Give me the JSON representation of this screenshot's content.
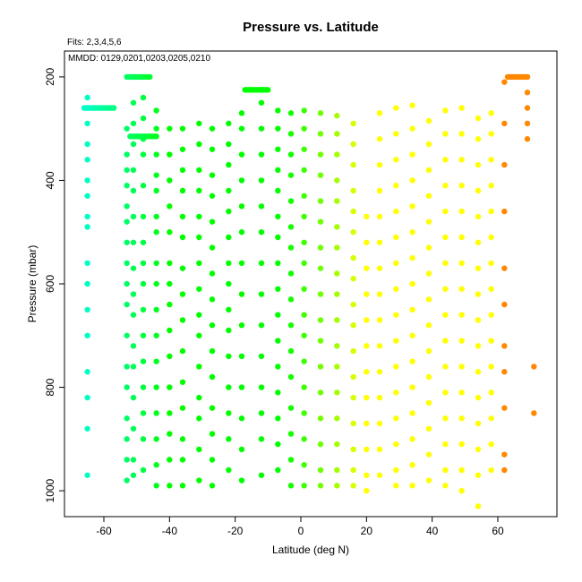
{
  "chart_data": {
    "type": "scatter",
    "title": "Pressure vs. Latitude",
    "subtitle_fits": "Fits: 2,3,4,5,6",
    "annotation_mmdd": "MMDD: 0129,0201,0203,0205,0210",
    "xlabel": "Latitude (deg N)",
    "ylabel": "Pressure (mbar)",
    "xlim": [
      -72,
      78
    ],
    "ylim": [
      1050,
      150
    ],
    "y_reversed": true,
    "grid": false,
    "x_ticks": [
      -60,
      -40,
      -20,
      0,
      20,
      40,
      60
    ],
    "y_ticks": [
      200,
      400,
      600,
      800,
      1000
    ],
    "x_tick_labels": [
      "-60",
      "-40",
      "-20",
      "0",
      "20",
      "40",
      "60"
    ],
    "y_tick_labels": [
      "200",
      "400",
      "600",
      "800",
      "1000"
    ],
    "colors": {
      "min": "#00ffcc",
      "mid_low": "#00ff00",
      "mid_high": "#ffff00",
      "max": "#ff8800"
    },
    "columns": [
      {
        "lat": -65,
        "p": [
          240,
          260,
          290,
          330,
          360,
          400,
          430,
          470,
          490,
          560,
          600,
          650,
          700,
          770,
          820,
          880,
          970
        ]
      },
      {
        "lat": -57,
        "p": [
          260
        ]
      },
      {
        "lat": -53,
        "p": [
          300,
          350,
          380,
          410,
          450,
          480,
          520,
          560,
          600,
          640,
          700,
          760,
          800,
          860,
          900,
          940,
          980
        ]
      },
      {
        "lat": -51,
        "p": [
          200,
          250,
          290,
          330,
          380,
          420,
          470,
          520,
          570,
          620,
          660,
          720,
          760,
          820,
          880,
          940,
          970
        ]
      },
      {
        "lat": -48,
        "p": [
          240,
          280,
          320,
          350,
          410,
          470,
          520,
          560,
          600,
          650,
          700,
          750,
          800,
          850,
          900,
          960
        ]
      },
      {
        "lat": -44,
        "p": [
          265,
          300,
          350,
          390,
          420,
          470,
          500,
          560,
          600,
          650,
          700,
          750,
          800,
          850,
          900,
          950,
          990
        ]
      },
      {
        "lat": -40,
        "p": [
          300,
          350,
          400,
          450,
          500,
          560,
          600,
          640,
          690,
          740,
          800,
          850,
          890,
          940,
          990
        ]
      },
      {
        "lat": -36,
        "p": [
          300,
          340,
          380,
          420,
          470,
          510,
          570,
          620,
          670,
          730,
          790,
          840,
          900,
          940,
          990
        ]
      },
      {
        "lat": -31,
        "p": [
          290,
          330,
          380,
          420,
          470,
          510,
          560,
          610,
          660,
          700,
          760,
          820,
          860,
          920,
          980
        ]
      },
      {
        "lat": -27,
        "p": [
          300,
          340,
          390,
          430,
          480,
          530,
          580,
          630,
          680,
          730,
          780,
          840,
          890,
          940,
          990
        ]
      },
      {
        "lat": -22,
        "p": [
          290,
          330,
          370,
          420,
          460,
          510,
          560,
          600,
          650,
          690,
          740,
          800,
          850,
          900,
          960
        ]
      },
      {
        "lat": -18,
        "p": [
          270,
          300,
          350,
          400,
          450,
          500,
          560,
          620,
          680,
          740,
          800,
          860,
          920,
          980
        ]
      },
      {
        "lat": -12,
        "p": [
          225,
          250,
          300,
          350,
          400,
          450,
          500,
          560,
          620,
          680,
          740,
          800,
          850,
          900,
          970
        ]
      },
      {
        "lat": -7,
        "p": [
          265,
          300,
          340,
          380,
          420,
          470,
          510,
          560,
          610,
          660,
          710,
          760,
          810,
          860,
          910,
          960
        ]
      },
      {
        "lat": -3,
        "p": [
          270,
          310,
          350,
          390,
          440,
          490,
          530,
          580,
          630,
          680,
          730,
          780,
          840,
          890,
          940,
          990
        ]
      },
      {
        "lat": 1,
        "p": [
          265,
          300,
          340,
          380,
          430,
          470,
          520,
          560,
          610,
          660,
          700,
          750,
          800,
          850,
          900,
          950,
          990
        ]
      },
      {
        "lat": 6,
        "p": [
          270,
          310,
          350,
          390,
          440,
          480,
          530,
          570,
          620,
          670,
          710,
          760,
          810,
          860,
          910,
          960,
          990
        ]
      },
      {
        "lat": 11,
        "p": [
          275,
          310,
          350,
          400,
          440,
          490,
          530,
          580,
          620,
          670,
          720,
          760,
          810,
          860,
          910,
          960,
          990
        ]
      },
      {
        "lat": 16,
        "p": [
          290,
          330,
          370,
          420,
          460,
          500,
          550,
          590,
          640,
          680,
          730,
          780,
          820,
          870,
          920,
          960,
          990
        ]
      },
      {
        "lat": 20,
        "p": [
          470,
          520,
          570,
          620,
          670,
          720,
          770,
          820,
          870,
          920,
          970,
          1000
        ]
      },
      {
        "lat": 24,
        "p": [
          270,
          320,
          370,
          420,
          470,
          520,
          570,
          620,
          670,
          720,
          770,
          820,
          870,
          920,
          970
        ]
      },
      {
        "lat": 29,
        "p": [
          260,
          310,
          360,
          410,
          460,
          510,
          560,
          610,
          660,
          710,
          760,
          810,
          860,
          910,
          960,
          990
        ]
      },
      {
        "lat": 34,
        "p": [
          255,
          300,
          350,
          400,
          450,
          500,
          550,
          600,
          650,
          700,
          750,
          800,
          850,
          900,
          950,
          990
        ]
      },
      {
        "lat": 39,
        "p": [
          285,
          330,
          380,
          430,
          480,
          530,
          580,
          630,
          680,
          730,
          780,
          830,
          880,
          930,
          980
        ]
      },
      {
        "lat": 44,
        "p": [
          265,
          310,
          360,
          410,
          460,
          510,
          560,
          610,
          660,
          710,
          760,
          810,
          860,
          910,
          960,
          990
        ]
      },
      {
        "lat": 49,
        "p": [
          260,
          310,
          360,
          410,
          460,
          510,
          560,
          610,
          660,
          710,
          760,
          810,
          860,
          910,
          960,
          1000
        ]
      },
      {
        "lat": 54,
        "p": [
          280,
          320,
          370,
          420,
          470,
          520,
          570,
          620,
          670,
          720,
          770,
          820,
          870,
          920,
          970,
          1030
        ]
      },
      {
        "lat": 58,
        "p": [
          270,
          310,
          360,
          410,
          460,
          510,
          560,
          610,
          660,
          710,
          760,
          810,
          860,
          910,
          960
        ]
      },
      {
        "lat": 62,
        "p": [
          210,
          290,
          370,
          460,
          570,
          640,
          720,
          770,
          840,
          930,
          960
        ]
      },
      {
        "lat": 66,
        "p": [
          200
        ]
      },
      {
        "lat": 69,
        "p": [
          200,
          230,
          260,
          290,
          320
        ]
      },
      {
        "lat": 71,
        "p": [
          760,
          850
        ]
      }
    ],
    "segments": [
      {
        "lat0": -66,
        "lat1": -57,
        "p": 260
      },
      {
        "lat0": -53,
        "lat1": -46,
        "p": 200
      },
      {
        "lat0": -52,
        "lat1": -44,
        "p": 315
      },
      {
        "lat0": -17,
        "lat1": -10,
        "p": 225
      },
      {
        "lat0": 63,
        "lat1": 69,
        "p": 200
      }
    ]
  }
}
